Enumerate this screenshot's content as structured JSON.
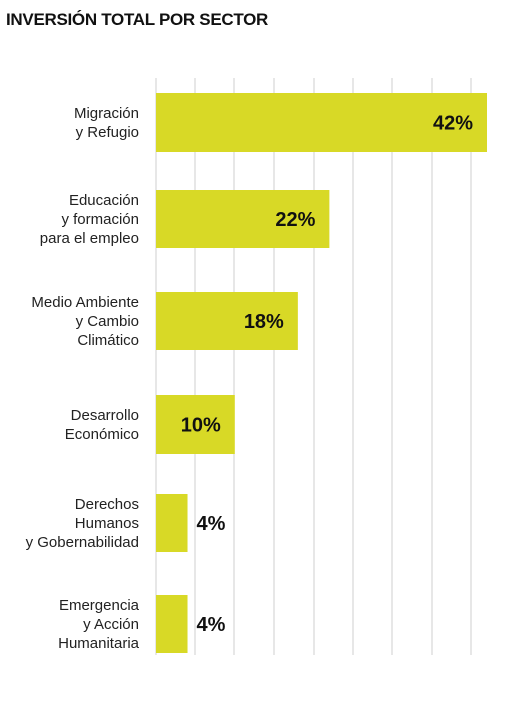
{
  "chart_data": {
    "type": "bar",
    "orientation": "horizontal",
    "title": "INVERSIÓN TOTAL POR SECTOR",
    "categories": [
      [
        "Migración",
        "y Refugio"
      ],
      [
        "Educación",
        "y formación",
        "para el empleo"
      ],
      [
        "Medio Ambiente",
        "y Cambio",
        "Climático"
      ],
      [
        "Desarrollo",
        "Económico"
      ],
      [
        "Derechos",
        "Humanos",
        "y Gobernabilidad"
      ],
      [
        "Emergencia",
        "y Acción",
        "Humanitaria"
      ]
    ],
    "values": [
      42,
      22,
      18,
      10,
      4,
      4
    ],
    "value_labels": [
      "42%",
      "22%",
      "18%",
      "10%",
      "4%",
      "4%"
    ],
    "xlim": [
      0,
      42
    ],
    "grid": true,
    "bar_color": "#d8d926",
    "grid_color": "#cfcfcf"
  }
}
